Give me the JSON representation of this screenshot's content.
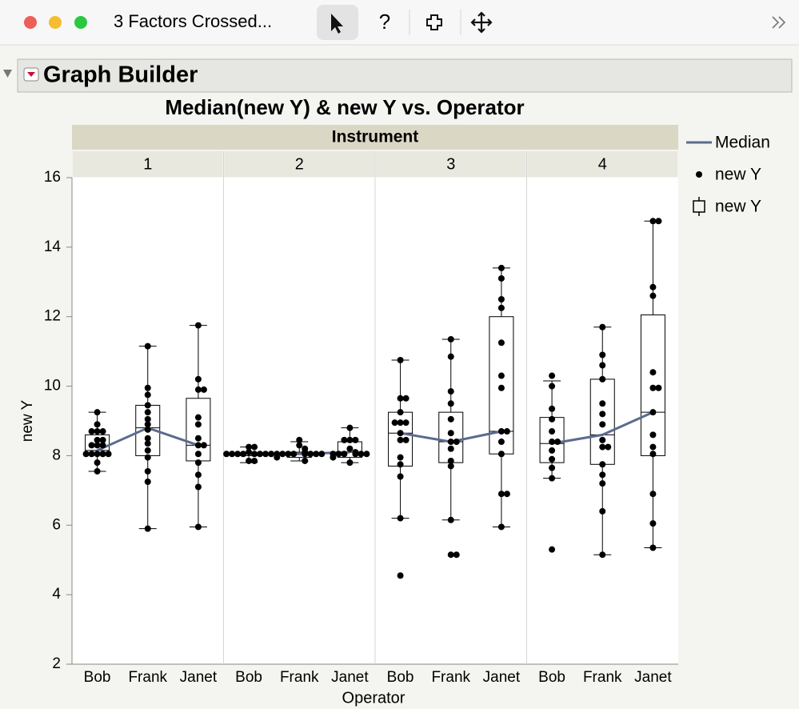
{
  "window": {
    "title": "3 Factors Crossed...",
    "help": "?"
  },
  "outline": {
    "title": "Graph Builder"
  },
  "chart_data": {
    "type": "box",
    "title": "Median(new Y) & new Y vs. Operator",
    "header": "Instrument",
    "x_label": "Operator",
    "y_label": "new Y",
    "legend": [
      "Median",
      "new Y",
      "new Y"
    ],
    "line_color": "#5b6b8e",
    "point_color": "#000000",
    "ylim": [
      2,
      16
    ],
    "yticks": [
      2,
      4,
      6,
      8,
      10,
      12,
      14,
      16
    ],
    "panels": [
      {
        "label": "1",
        "groups": [
          {
            "category": "Bob",
            "min": 7.55,
            "q1": 8.05,
            "median": 8.15,
            "q3": 8.6,
            "max": 9.25,
            "points": [
              9.25,
              8.9,
              8.7,
              8.7,
              8.7,
              8.45,
              8.45,
              8.3,
              8.3,
              8.3,
              8.05,
              8.05,
              8.05,
              8.05,
              8.05,
              7.8,
              7.55
            ]
          },
          {
            "category": "Frank",
            "min": 5.9,
            "q1": 8.0,
            "median": 8.8,
            "q3": 9.45,
            "max": 11.15,
            "points": [
              11.15,
              9.95,
              9.75,
              9.45,
              9.25,
              9.05,
              8.9,
              8.75,
              8.5,
              8.35,
              8.15,
              7.95,
              7.55,
              7.25,
              5.9
            ]
          },
          {
            "category": "Janet",
            "min": 5.95,
            "q1": 7.85,
            "median": 8.3,
            "q3": 9.65,
            "max": 11.75,
            "points": [
              11.75,
              10.2,
              9.9,
              9.9,
              9.1,
              8.9,
              8.5,
              8.3,
              8.3,
              8.05,
              7.8,
              7.45,
              7.1,
              5.95
            ]
          }
        ]
      },
      {
        "label": "2",
        "groups": [
          {
            "category": "Bob",
            "min": 7.8,
            "q1": 8.0,
            "median": 8.05,
            "q3": 8.05,
            "max": 8.25,
            "points": [
              8.25,
              8.25,
              8.1,
              8.05,
              8.05,
              8.05,
              8.05,
              8.05,
              8.05,
              8.05,
              8.05,
              7.85,
              7.85
            ]
          },
          {
            "category": "Frank",
            "min": 7.85,
            "q1": 7.95,
            "median": 8.05,
            "q3": 8.1,
            "max": 8.4,
            "points": [
              8.45,
              8.3,
              8.2,
              8.1,
              8.05,
              8.05,
              8.05,
              8.05,
              8.05,
              8.05,
              8.05,
              8.05,
              7.95,
              7.85
            ]
          },
          {
            "category": "Janet",
            "min": 7.8,
            "q1": 7.95,
            "median": 8.1,
            "q3": 8.4,
            "max": 8.8,
            "points": [
              8.8,
              8.45,
              8.45,
              8.45,
              8.2,
              8.1,
              8.05,
              8.05,
              8.05,
              8.05,
              8.05,
              8.05,
              7.95,
              7.8
            ]
          }
        ]
      },
      {
        "label": "3",
        "groups": [
          {
            "category": "Bob",
            "min": 6.2,
            "q1": 7.7,
            "median": 8.65,
            "q3": 9.25,
            "max": 10.75,
            "points": [
              10.75,
              9.65,
              9.65,
              9.25,
              8.95,
              8.95,
              8.95,
              8.65,
              8.45,
              8.45,
              7.95,
              7.75,
              7.4,
              6.2,
              4.55
            ]
          },
          {
            "category": "Frank",
            "min": 6.15,
            "q1": 7.8,
            "median": 8.4,
            "q3": 9.25,
            "max": 11.35,
            "points": [
              11.35,
              10.85,
              9.85,
              9.5,
              9.05,
              8.65,
              8.4,
              8.4,
              8.2,
              7.85,
              7.7,
              6.15,
              5.15,
              5.15
            ]
          },
          {
            "category": "Janet",
            "min": 5.95,
            "q1": 8.05,
            "median": 8.7,
            "q3": 12.0,
            "max": 13.4,
            "points": [
              13.4,
              13.1,
              12.5,
              12.25,
              11.25,
              10.3,
              9.95,
              8.7,
              8.7,
              8.4,
              8.05,
              6.9,
              6.9,
              5.95
            ]
          }
        ]
      },
      {
        "label": "4",
        "groups": [
          {
            "category": "Bob",
            "min": 7.35,
            "q1": 7.8,
            "median": 8.35,
            "q3": 9.1,
            "max": 10.15,
            "points": [
              10.3,
              10.0,
              9.35,
              9.05,
              8.7,
              8.4,
              8.4,
              8.15,
              7.9,
              7.65,
              7.35,
              5.3
            ]
          },
          {
            "category": "Frank",
            "min": 5.15,
            "q1": 7.75,
            "median": 8.6,
            "q3": 10.2,
            "max": 11.7,
            "points": [
              11.7,
              10.9,
              10.6,
              10.2,
              9.5,
              9.2,
              8.9,
              8.45,
              8.25,
              8.25,
              7.75,
              7.45,
              7.2,
              6.4,
              5.15
            ]
          },
          {
            "category": "Janet",
            "min": 5.35,
            "q1": 8.0,
            "median": 9.25,
            "q3": 12.05,
            "max": 14.75,
            "points": [
              14.75,
              14.75,
              12.85,
              12.6,
              10.4,
              9.95,
              9.95,
              9.25,
              8.6,
              8.25,
              8.05,
              6.9,
              6.05,
              5.35
            ]
          }
        ]
      }
    ]
  }
}
